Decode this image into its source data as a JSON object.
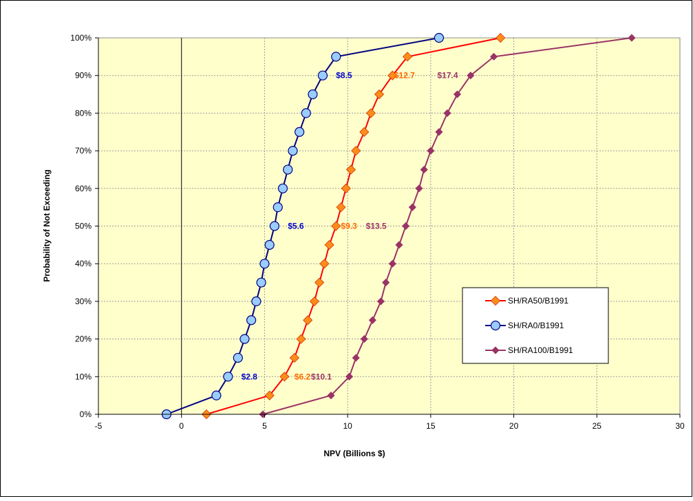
{
  "chart_data": {
    "type": "line",
    "title": "",
    "xlabel": "NPV (Billions $)",
    "ylabel": "Probability of Not Exceeding",
    "xlim": [
      -5,
      30
    ],
    "ylim": [
      0,
      100
    ],
    "xticks": [
      "-5",
      "0",
      "5",
      "10",
      "15",
      "20",
      "25",
      "30"
    ],
    "yticks": [
      "0%",
      "10%",
      "20%",
      "30%",
      "40%",
      "50%",
      "60%",
      "70%",
      "80%",
      "90%",
      "100%"
    ],
    "grid": true,
    "plot_background": "#FFFFCC",
    "legend_position": "right",
    "series": [
      {
        "name": "SH/RA50/B1991",
        "line_color": "#FF0000",
        "marker": "diamond",
        "marker_color": "#FF8C1A",
        "points": [
          [
            1.5,
            0
          ],
          [
            5.3,
            5
          ],
          [
            6.2,
            10
          ],
          [
            6.8,
            15
          ],
          [
            7.2,
            20
          ],
          [
            7.6,
            25
          ],
          [
            8.0,
            30
          ],
          [
            8.3,
            35
          ],
          [
            8.6,
            40
          ],
          [
            8.9,
            45
          ],
          [
            9.3,
            50
          ],
          [
            9.6,
            55
          ],
          [
            9.9,
            60
          ],
          [
            10.2,
            65
          ],
          [
            10.5,
            70
          ],
          [
            11.0,
            75
          ],
          [
            11.4,
            80
          ],
          [
            11.9,
            85
          ],
          [
            12.7,
            90
          ],
          [
            13.6,
            95
          ],
          [
            19.2,
            100
          ]
        ]
      },
      {
        "name": "SH/RA0/B1991",
        "line_color": "#000080",
        "marker": "circle",
        "marker_color": "#99CCFF",
        "points": [
          [
            -0.9,
            0
          ],
          [
            2.1,
            5
          ],
          [
            2.8,
            10
          ],
          [
            3.4,
            15
          ],
          [
            3.8,
            20
          ],
          [
            4.2,
            25
          ],
          [
            4.5,
            30
          ],
          [
            4.8,
            35
          ],
          [
            5.0,
            40
          ],
          [
            5.3,
            45
          ],
          [
            5.6,
            50
          ],
          [
            5.8,
            55
          ],
          [
            6.1,
            60
          ],
          [
            6.4,
            65
          ],
          [
            6.7,
            70
          ],
          [
            7.1,
            75
          ],
          [
            7.5,
            80
          ],
          [
            7.9,
            85
          ],
          [
            8.5,
            90
          ],
          [
            9.3,
            95
          ],
          [
            15.5,
            100
          ]
        ]
      },
      {
        "name": "SH/RA100/B1991",
        "line_color": "#993366",
        "marker": "diamond",
        "marker_color": "#993366",
        "points": [
          [
            4.9,
            0
          ],
          [
            9.0,
            5
          ],
          [
            10.1,
            10
          ],
          [
            10.5,
            15
          ],
          [
            11.0,
            20
          ],
          [
            11.5,
            25
          ],
          [
            12.0,
            30
          ],
          [
            12.3,
            35
          ],
          [
            12.7,
            40
          ],
          [
            13.1,
            45
          ],
          [
            13.5,
            50
          ],
          [
            13.9,
            55
          ],
          [
            14.3,
            60
          ],
          [
            14.6,
            65
          ],
          [
            15.0,
            70
          ],
          [
            15.5,
            75
          ],
          [
            16.0,
            80
          ],
          [
            16.6,
            85
          ],
          [
            17.4,
            90
          ],
          [
            18.8,
            95
          ],
          [
            27.1,
            100
          ]
        ]
      }
    ],
    "annotations": [
      {
        "text": "$8.5",
        "x": 9.3,
        "y": 90,
        "color": "#0000CC"
      },
      {
        "text": "$12.7",
        "x": 12.8,
        "y": 90,
        "color": "#FF6600"
      },
      {
        "text": "$17.4",
        "x": 15.4,
        "y": 90,
        "color": "#993366"
      },
      {
        "text": "$5.6",
        "x": 6.4,
        "y": 50,
        "color": "#0000CC"
      },
      {
        "text": "$9.3",
        "x": 9.6,
        "y": 50,
        "color": "#FF6600"
      },
      {
        "text": "$13.5",
        "x": 11.1,
        "y": 50,
        "color": "#993366"
      },
      {
        "text": "$2.8",
        "x": 3.6,
        "y": 10,
        "color": "#0000CC"
      },
      {
        "text": "$6.2",
        "x": 6.8,
        "y": 10,
        "color": "#FF6600"
      },
      {
        "text": "$10.1",
        "x": 7.8,
        "y": 10,
        "color": "#993366"
      }
    ]
  }
}
